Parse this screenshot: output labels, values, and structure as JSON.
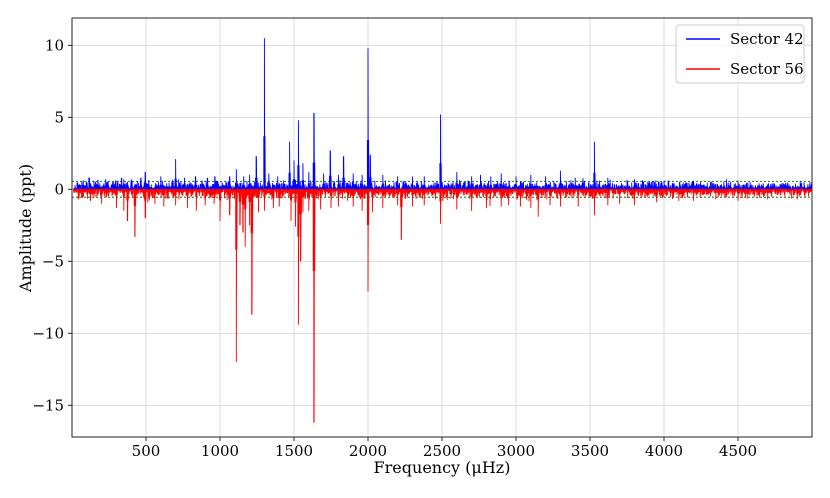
{
  "chart_data": {
    "type": "line",
    "xlabel": "Frequency (μHz)",
    "ylabel": "Amplitude (ppt)",
    "xlim": [
      0,
      5000
    ],
    "ylim": [
      -17.2,
      11.9
    ],
    "xticks": [
      500,
      1000,
      1500,
      2000,
      2500,
      3000,
      3500,
      4000,
      4500
    ],
    "yticks": [
      10,
      5,
      0,
      -5,
      -10,
      -15
    ],
    "grid": true,
    "legend_position": "top-right",
    "threshold_lines": [
      0.55,
      -0.55
    ],
    "threshold_color": "#2e8b2e",
    "series": [
      {
        "name": "Sector 42",
        "color": "#0000ff",
        "sign": 1,
        "noise": 0.32,
        "peaks": [
          [
            118,
            0.8
          ],
          [
            175,
            0.6
          ],
          [
            228,
            0.7
          ],
          [
            295,
            0.6
          ],
          [
            335,
            0.8
          ],
          [
            350,
            0.7
          ],
          [
            400,
            0.7
          ],
          [
            465,
            0.8
          ],
          [
            495,
            1.2
          ],
          [
            600,
            0.9
          ],
          [
            700,
            2.1
          ],
          [
            760,
            0.8
          ],
          [
            835,
            0.9
          ],
          [
            915,
            0.8
          ],
          [
            965,
            0.9
          ],
          [
            1065,
            0.9
          ],
          [
            1110,
            1.4
          ],
          [
            1160,
            0.9
          ],
          [
            1200,
            1.0
          ],
          [
            1245,
            2.3
          ],
          [
            1300,
            10.5
          ],
          [
            1330,
            1.1
          ],
          [
            1390,
            0.9
          ],
          [
            1470,
            3.3
          ],
          [
            1500,
            2.0
          ],
          [
            1530,
            4.8
          ],
          [
            1560,
            1.8
          ],
          [
            1600,
            1.2
          ],
          [
            1635,
            5.3
          ],
          [
            1700,
            1.1
          ],
          [
            1745,
            2.7
          ],
          [
            1800,
            1.0
          ],
          [
            1835,
            2.3
          ],
          [
            1900,
            1.1
          ],
          [
            1960,
            1.0
          ],
          [
            2000,
            9.8
          ],
          [
            2015,
            2.4
          ],
          [
            2100,
            1.0
          ],
          [
            2200,
            0.9
          ],
          [
            2300,
            0.9
          ],
          [
            2380,
            0.9
          ],
          [
            2490,
            5.2
          ],
          [
            2600,
            1.2
          ],
          [
            2700,
            0.9
          ],
          [
            2760,
            1.0
          ],
          [
            2830,
            0.9
          ],
          [
            2900,
            1.1
          ],
          [
            3000,
            0.9
          ],
          [
            3100,
            1.0
          ],
          [
            3200,
            0.9
          ],
          [
            3300,
            1.3
          ],
          [
            3400,
            0.8
          ],
          [
            3530,
            3.3
          ],
          [
            3620,
            0.8
          ],
          [
            3800,
            0.7
          ],
          [
            4000,
            0.6
          ],
          [
            4200,
            0.6
          ],
          [
            4500,
            0.6
          ]
        ]
      },
      {
        "name": "Sector 56",
        "color": "#ff0000",
        "sign": -1,
        "noise": 0.36,
        "peaks": [
          [
            125,
            0.8
          ],
          [
            200,
            1.0
          ],
          [
            300,
            1.3
          ],
          [
            350,
            1.5
          ],
          [
            375,
            2.2
          ],
          [
            425,
            3.3
          ],
          [
            495,
            2.0
          ],
          [
            560,
            1.0
          ],
          [
            620,
            1.2
          ],
          [
            700,
            1.1
          ],
          [
            780,
            1.3
          ],
          [
            840,
            1.5
          ],
          [
            900,
            1.1
          ],
          [
            960,
            1.0
          ],
          [
            1000,
            2.2
          ],
          [
            1065,
            1.8
          ],
          [
            1110,
            12.0
          ],
          [
            1135,
            2.5
          ],
          [
            1155,
            3.0
          ],
          [
            1170,
            4.0
          ],
          [
            1200,
            2.5
          ],
          [
            1215,
            8.7
          ],
          [
            1260,
            1.6
          ],
          [
            1300,
            1.5
          ],
          [
            1360,
            1.3
          ],
          [
            1400,
            1.2
          ],
          [
            1480,
            2.2
          ],
          [
            1510,
            2.6
          ],
          [
            1530,
            9.4
          ],
          [
            1545,
            5.0
          ],
          [
            1560,
            1.6
          ],
          [
            1600,
            1.5
          ],
          [
            1635,
            16.2
          ],
          [
            1680,
            1.4
          ],
          [
            1750,
            1.3
          ],
          [
            1800,
            1.2
          ],
          [
            1900,
            1.2
          ],
          [
            1960,
            1.5
          ],
          [
            2000,
            7.1
          ],
          [
            2030,
            1.6
          ],
          [
            2100,
            1.3
          ],
          [
            2200,
            1.1
          ],
          [
            2225,
            3.5
          ],
          [
            2300,
            1.2
          ],
          [
            2380,
            1.1
          ],
          [
            2490,
            2.4
          ],
          [
            2600,
            1.4
          ],
          [
            2700,
            1.5
          ],
          [
            2800,
            1.3
          ],
          [
            2900,
            1.2
          ],
          [
            2950,
            1.1
          ],
          [
            3030,
            1.2
          ],
          [
            3100,
            1.3
          ],
          [
            3150,
            1.9
          ],
          [
            3230,
            1.1
          ],
          [
            3300,
            1.2
          ],
          [
            3420,
            1.2
          ],
          [
            3530,
            1.8
          ],
          [
            3620,
            1.1
          ],
          [
            3700,
            1.0
          ],
          [
            3800,
            1.1
          ],
          [
            3950,
            0.9
          ],
          [
            4100,
            0.8
          ],
          [
            4200,
            0.8
          ],
          [
            4350,
            0.7
          ],
          [
            4500,
            0.8
          ],
          [
            4700,
            0.7
          ],
          [
            4900,
            0.7
          ]
        ]
      }
    ]
  }
}
